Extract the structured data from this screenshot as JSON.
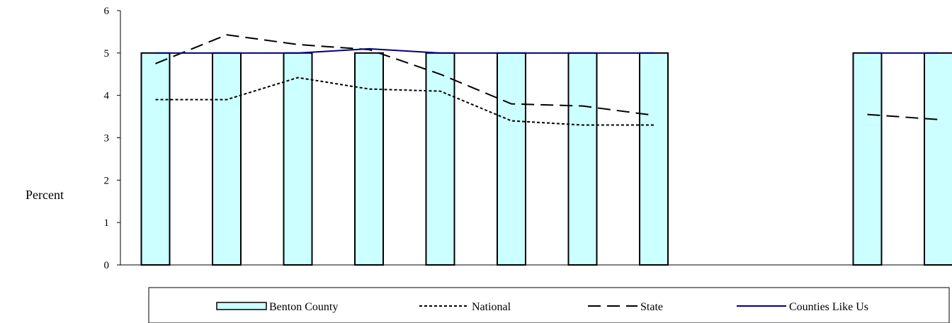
{
  "chart_data": {
    "type": "bar",
    "ylabel": "Percent",
    "ylim": [
      0,
      6
    ],
    "yticks": [
      "0",
      "1",
      "2",
      "3",
      "4",
      "5",
      "6"
    ],
    "grid": false,
    "legend_position": "bottom",
    "slots": 12,
    "series": [
      {
        "name": "Benton County",
        "kind": "bar",
        "color": "#ccffff",
        "values": [
          5,
          5,
          5,
          5,
          5,
          5,
          5,
          5,
          null,
          null,
          5,
          5
        ]
      },
      {
        "name": "National",
        "kind": "line",
        "style": "dotted",
        "color": "#000000",
        "values": [
          3.9,
          3.9,
          4.42,
          4.15,
          4.1,
          3.4,
          3.3,
          3.3,
          null,
          null,
          null,
          null
        ]
      },
      {
        "name": "State",
        "kind": "line",
        "style": "dashed",
        "color": "#000000",
        "values": [
          4.75,
          5.43,
          5.2,
          5.08,
          4.5,
          3.8,
          3.75,
          3.53,
          null,
          null,
          3.55,
          3.43
        ]
      },
      {
        "name": "Counties Like Us",
        "kind": "line",
        "style": "solid",
        "color": "#000080",
        "values": [
          5,
          5,
          5,
          5.1,
          5,
          5,
          5,
          5,
          null,
          null,
          5,
          5
        ]
      }
    ]
  }
}
